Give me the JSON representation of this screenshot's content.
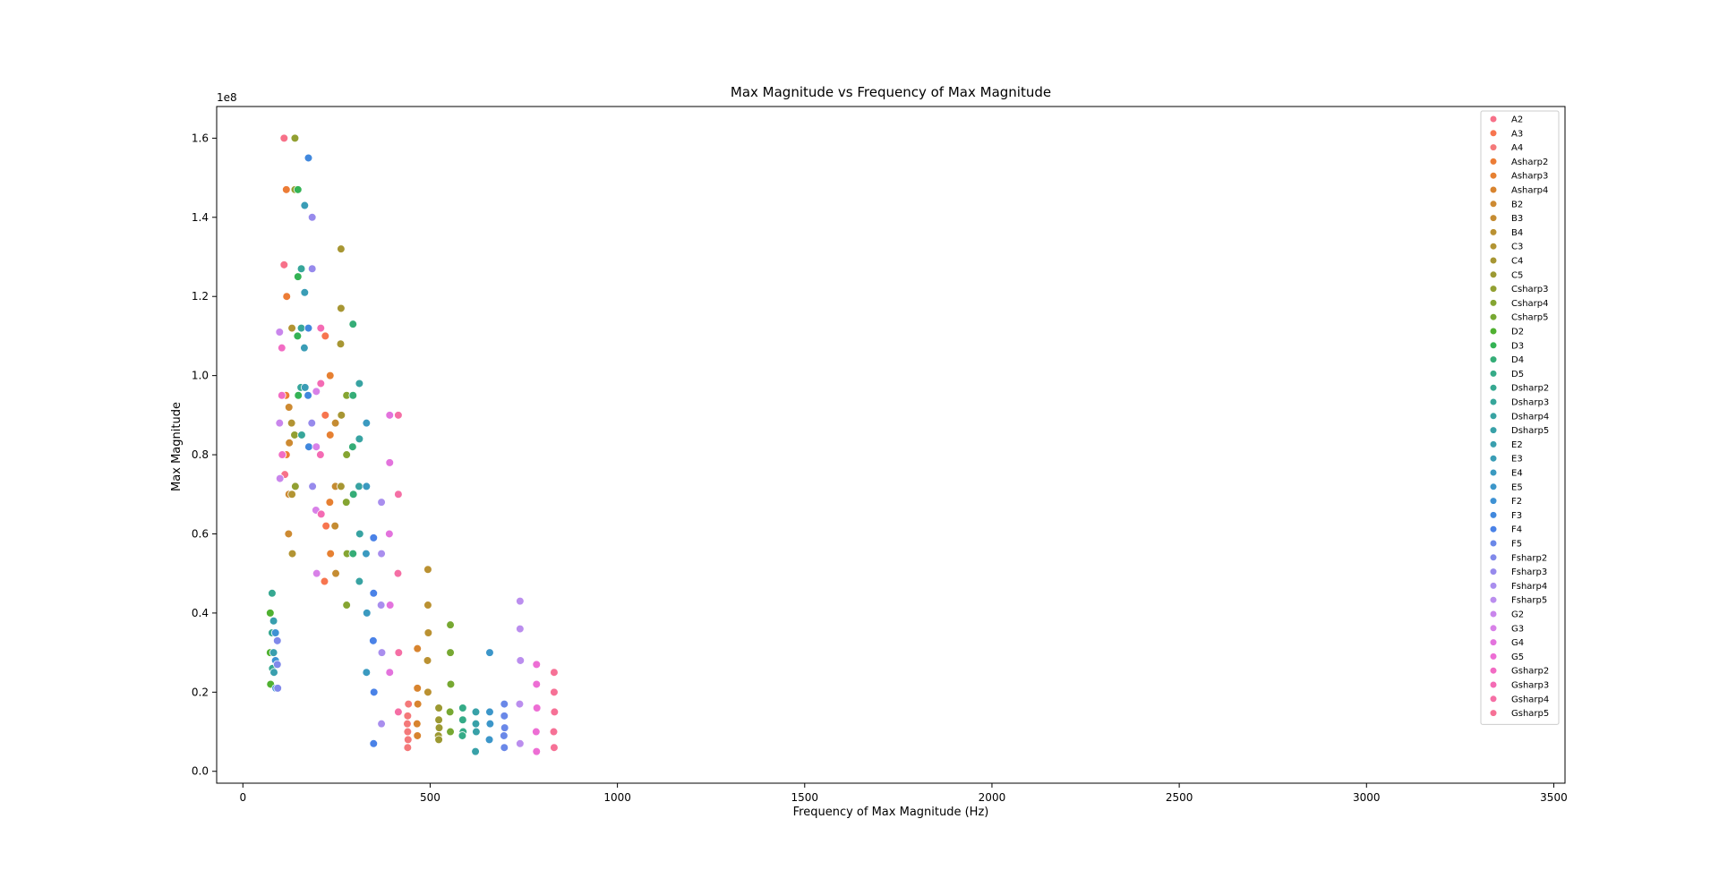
{
  "chart_data": {
    "type": "scatter",
    "title": "Max Magnitude vs Frequency of Max Magnitude",
    "xlabel": "Frequency of Max Magnitude (Hz)",
    "ylabel": "Max Magnitude",
    "y_offset_text": "1e8",
    "xlim": [
      -70,
      3530
    ],
    "ylim": [
      -0.03,
      1.68
    ],
    "x_ticks": [
      0,
      500,
      1000,
      1500,
      2000,
      2500,
      3000,
      3500
    ],
    "x_tick_labels": [
      "0",
      "500",
      "1000",
      "1500",
      "2000",
      "2500",
      "3000",
      "3500"
    ],
    "y_ticks": [
      0.0,
      0.2,
      0.4,
      0.6,
      0.8,
      1.0,
      1.2,
      1.4,
      1.6
    ],
    "y_tick_labels": [
      "0.0",
      "0.2",
      "0.4",
      "0.6",
      "0.8",
      "1.0",
      "1.2",
      "1.4",
      "1.6"
    ],
    "y_scale_note": "values in units of 1e8",
    "grid": false,
    "legend_position": "top-right",
    "series": [
      {
        "name": "A2",
        "color": "#f77189",
        "x": [
          110,
          110,
          112
        ],
        "y": [
          1.6,
          1.28,
          0.75
        ]
      },
      {
        "name": "A3",
        "color": "#f7754f",
        "x": [
          220,
          220,
          222,
          218
        ],
        "y": [
          1.1,
          0.9,
          0.62,
          0.48
        ]
      },
      {
        "name": "A4",
        "color": "#f4797a",
        "x": [
          440,
          440,
          441,
          439,
          440,
          442
        ],
        "y": [
          0.14,
          0.1,
          0.08,
          0.12,
          0.06,
          0.17
        ]
      },
      {
        "name": "Asharp2",
        "color": "#ec7c36",
        "x": [
          116,
          117,
          115,
          116
        ],
        "y": [
          1.47,
          1.2,
          0.95,
          0.8
        ]
      },
      {
        "name": "Asharp3",
        "color": "#e68032",
        "x": [
          233,
          233,
          232,
          234
        ],
        "y": [
          1.0,
          0.85,
          0.68,
          0.55
        ]
      },
      {
        "name": "Asharp4",
        "color": "#d8842f",
        "x": [
          466,
          466,
          467,
          465,
          466
        ],
        "y": [
          0.31,
          0.21,
          0.17,
          0.12,
          0.09
        ]
      },
      {
        "name": "B2",
        "color": "#cd8a32",
        "x": [
          123,
          124,
          123,
          122
        ],
        "y": [
          0.92,
          0.83,
          0.7,
          0.6
        ]
      },
      {
        "name": "B3",
        "color": "#c58c32",
        "x": [
          247,
          247,
          246,
          248
        ],
        "y": [
          0.88,
          0.72,
          0.62,
          0.5
        ]
      },
      {
        "name": "B4",
        "color": "#ba9132",
        "x": [
          494,
          494,
          495,
          493,
          494
        ],
        "y": [
          0.51,
          0.42,
          0.35,
          0.28,
          0.2
        ]
      },
      {
        "name": "C3",
        "color": "#b29433",
        "x": [
          131,
          130,
          131,
          132
        ],
        "y": [
          1.12,
          0.88,
          0.7,
          0.55
        ]
      },
      {
        "name": "C4",
        "color": "#a79633",
        "x": [
          262,
          262,
          261,
          263,
          262
        ],
        "y": [
          1.32,
          1.17,
          1.08,
          0.9,
          0.72
        ]
      },
      {
        "name": "C5",
        "color": "#9c9932",
        "x": [
          523,
          523,
          524,
          522,
          523
        ],
        "y": [
          0.16,
          0.13,
          0.11,
          0.09,
          0.08
        ]
      },
      {
        "name": "Csharp3",
        "color": "#92a032",
        "x": [
          139,
          139,
          138,
          140
        ],
        "y": [
          1.6,
          1.47,
          0.85,
          0.72
        ]
      },
      {
        "name": "Csharp4",
        "color": "#85a532",
        "x": [
          277,
          277,
          276,
          278,
          277
        ],
        "y": [
          0.95,
          0.8,
          0.68,
          0.55,
          0.42
        ]
      },
      {
        "name": "Csharp5",
        "color": "#77a832",
        "x": [
          554,
          554,
          555,
          553,
          554
        ],
        "y": [
          0.37,
          0.3,
          0.22,
          0.15,
          0.1
        ]
      },
      {
        "name": "D2",
        "color": "#50b131",
        "x": [
          73,
          73,
          74
        ],
        "y": [
          0.4,
          0.3,
          0.22
        ]
      },
      {
        "name": "D3",
        "color": "#34b354",
        "x": [
          147,
          147,
          146,
          148
        ],
        "y": [
          1.47,
          1.25,
          1.1,
          0.95
        ]
      },
      {
        "name": "D4",
        "color": "#35ad77",
        "x": [
          294,
          294,
          293,
          295,
          294
        ],
        "y": [
          1.13,
          0.95,
          0.82,
          0.7,
          0.55
        ]
      },
      {
        "name": "D5",
        "color": "#35ab87",
        "x": [
          587,
          587,
          588,
          586
        ],
        "y": [
          0.16,
          0.13,
          0.1,
          0.09
        ]
      },
      {
        "name": "Dsharp2",
        "color": "#36a891",
        "x": [
          78,
          78,
          79
        ],
        "y": [
          0.45,
          0.35,
          0.26
        ]
      },
      {
        "name": "Dsharp3",
        "color": "#37a69a",
        "x": [
          156,
          156,
          155,
          157
        ],
        "y": [
          1.27,
          1.12,
          0.97,
          0.85
        ]
      },
      {
        "name": "Dsharp4",
        "color": "#38a3a2",
        "x": [
          311,
          311,
          310,
          312,
          311
        ],
        "y": [
          0.98,
          0.84,
          0.72,
          0.6,
          0.48
        ]
      },
      {
        "name": "Dsharp5",
        "color": "#38a1a8",
        "x": [
          622,
          622,
          623,
          621
        ],
        "y": [
          0.15,
          0.12,
          0.1,
          0.05
        ]
      },
      {
        "name": "E2",
        "color": "#399fae",
        "x": [
          82,
          82,
          83
        ],
        "y": [
          0.38,
          0.3,
          0.25
        ]
      },
      {
        "name": "E3",
        "color": "#3a9db6",
        "x": [
          165,
          165,
          164,
          166
        ],
        "y": [
          1.43,
          1.21,
          1.07,
          0.97
        ]
      },
      {
        "name": "E4",
        "color": "#3b9ac0",
        "x": [
          330,
          330,
          329,
          331,
          330
        ],
        "y": [
          0.88,
          0.72,
          0.55,
          0.4,
          0.25
        ]
      },
      {
        "name": "E5",
        "color": "#3c96c9",
        "x": [
          659,
          659,
          660,
          658
        ],
        "y": [
          0.3,
          0.15,
          0.12,
          0.08
        ]
      },
      {
        "name": "F2",
        "color": "#3e92d4",
        "x": [
          87,
          87,
          88
        ],
        "y": [
          0.35,
          0.28,
          0.21
        ]
      },
      {
        "name": "F3",
        "color": "#4188dd",
        "x": [
          175,
          175,
          174,
          176
        ],
        "y": [
          1.55,
          1.12,
          0.95,
          0.82
        ]
      },
      {
        "name": "F4",
        "color": "#4a82e7",
        "x": [
          349,
          349,
          348,
          350,
          349
        ],
        "y": [
          0.59,
          0.45,
          0.33,
          0.2,
          0.07
        ]
      },
      {
        "name": "F5",
        "color": "#6a88e8",
        "x": [
          698,
          698,
          699,
          697,
          698
        ],
        "y": [
          0.17,
          0.14,
          0.11,
          0.09,
          0.06
        ]
      },
      {
        "name": "Fsharp2",
        "color": "#8089ea",
        "x": [
          92,
          92,
          93
        ],
        "y": [
          0.33,
          0.27,
          0.21
        ]
      },
      {
        "name": "Fsharp3",
        "color": "#978aec",
        "x": [
          185,
          185,
          184,
          186
        ],
        "y": [
          1.4,
          1.27,
          0.88,
          0.72
        ]
      },
      {
        "name": "Fsharp4",
        "color": "#a98eee",
        "x": [
          370,
          370,
          369,
          371,
          370
        ],
        "y": [
          0.68,
          0.55,
          0.42,
          0.3,
          0.12
        ]
      },
      {
        "name": "Fsharp5",
        "color": "#bb8eee",
        "x": [
          740,
          740,
          741,
          739,
          740
        ],
        "y": [
          0.43,
          0.36,
          0.28,
          0.17,
          0.07
        ]
      },
      {
        "name": "G2",
        "color": "#c986ec",
        "x": [
          98,
          98,
          99
        ],
        "y": [
          1.11,
          0.88,
          0.74
        ]
      },
      {
        "name": "G3",
        "color": "#d881e8",
        "x": [
          196,
          196,
          195,
          197
        ],
        "y": [
          0.96,
          0.82,
          0.66,
          0.5
        ]
      },
      {
        "name": "G4",
        "color": "#e373dd",
        "x": [
          392,
          392,
          391,
          393,
          392
        ],
        "y": [
          0.9,
          0.78,
          0.6,
          0.42,
          0.25
        ]
      },
      {
        "name": "G5",
        "color": "#ed6ed4",
        "x": [
          784,
          784,
          785,
          783,
          784
        ],
        "y": [
          0.27,
          0.22,
          0.16,
          0.1,
          0.05
        ]
      },
      {
        "name": "Gsharp2",
        "color": "#f26cc4",
        "x": [
          104,
          104,
          105
        ],
        "y": [
          1.07,
          0.95,
          0.8
        ]
      },
      {
        "name": "Gsharp3",
        "color": "#f46bb4",
        "x": [
          208,
          208,
          207,
          209
        ],
        "y": [
          1.12,
          0.98,
          0.8,
          0.65
        ]
      },
      {
        "name": "Gsharp4",
        "color": "#f56fa5",
        "x": [
          415,
          415,
          414,
          416,
          415
        ],
        "y": [
          0.9,
          0.7,
          0.5,
          0.3,
          0.15
        ]
      },
      {
        "name": "Gsharp5",
        "color": "#f67196",
        "x": [
          831,
          831,
          832,
          830,
          831
        ],
        "y": [
          0.25,
          0.2,
          0.15,
          0.1,
          0.06
        ]
      }
    ]
  }
}
